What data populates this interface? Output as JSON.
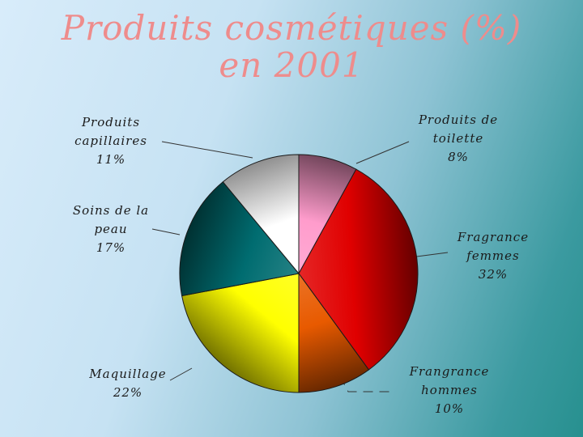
{
  "title": {
    "line1": "Produits cosmétiques (%)",
    "line2": "en 2001"
  },
  "chart_data": {
    "type": "pie",
    "title": "Produits cosmétiques (%) en 2001",
    "slices": [
      {
        "label": [
          "Produits de",
          "toilette"
        ],
        "value": 8,
        "value_text": "8%",
        "color": "#ff9ccc"
      },
      {
        "label": [
          "Fragrance",
          "femmes"
        ],
        "value": 32,
        "value_text": "32%",
        "color": "#e00000"
      },
      {
        "label": [
          "Frangrance",
          "hommes"
        ],
        "value": 10,
        "value_text": "10%",
        "color": "#e85a00"
      },
      {
        "label": [
          "Maquillage"
        ],
        "value": 22,
        "value_text": "22%",
        "color": "#ffff00"
      },
      {
        "label": [
          "Soins de la",
          "peau"
        ],
        "value": 17,
        "value_text": "17%",
        "color": "#006c70"
      },
      {
        "label": [
          "Produits",
          "capillaires"
        ],
        "value": 11,
        "value_text": "11%",
        "color": "#ffffff"
      }
    ]
  }
}
